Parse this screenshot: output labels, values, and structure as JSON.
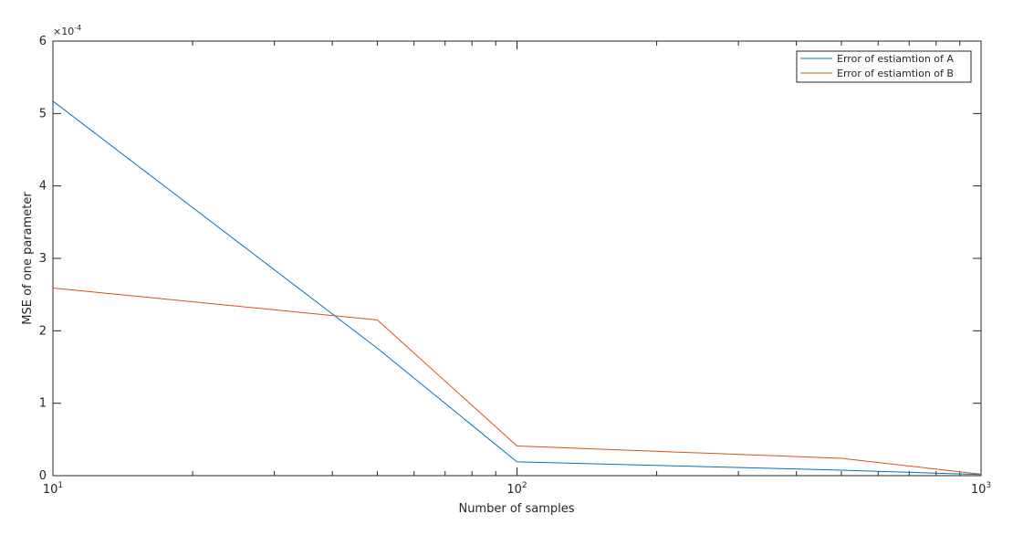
{
  "chart_data": {
    "type": "line",
    "xlabel": "Number of samples",
    "ylabel": "MSE of one parameter",
    "xscale": "log",
    "xlim": [
      10,
      1000
    ],
    "ylim": [
      0,
      0.0006
    ],
    "grid": false,
    "legend_position": "top-right",
    "y_exponent_label": "×10",
    "y_exponent_power": "-4",
    "x_ticks": [
      {
        "value": 10,
        "base": "10",
        "power": "1"
      },
      {
        "value": 100,
        "base": "10",
        "power": "2"
      },
      {
        "value": 1000,
        "base": "10",
        "power": "3"
      }
    ],
    "y_ticks": [
      {
        "value": 0,
        "label": "0"
      },
      {
        "value": 0.0001,
        "label": "1"
      },
      {
        "value": 0.0002,
        "label": "2"
      },
      {
        "value": 0.0003,
        "label": "3"
      },
      {
        "value": 0.0004,
        "label": "4"
      },
      {
        "value": 0.0005,
        "label": "5"
      },
      {
        "value": 0.0006,
        "label": "6"
      }
    ],
    "x": [
      10,
      50,
      100,
      500,
      1000
    ],
    "series": [
      {
        "name": "Error of estiamtion of A",
        "color": "#0072BD",
        "values": [
          0.000517,
          0.000176,
          1.9e-05,
          7.5e-06,
          1.5e-06
        ]
      },
      {
        "name": "Error of estiamtion of B",
        "color": "#D95319",
        "values": [
          0.000259,
          0.000215,
          4.1e-05,
          2.4e-05,
          2e-06
        ]
      }
    ]
  }
}
